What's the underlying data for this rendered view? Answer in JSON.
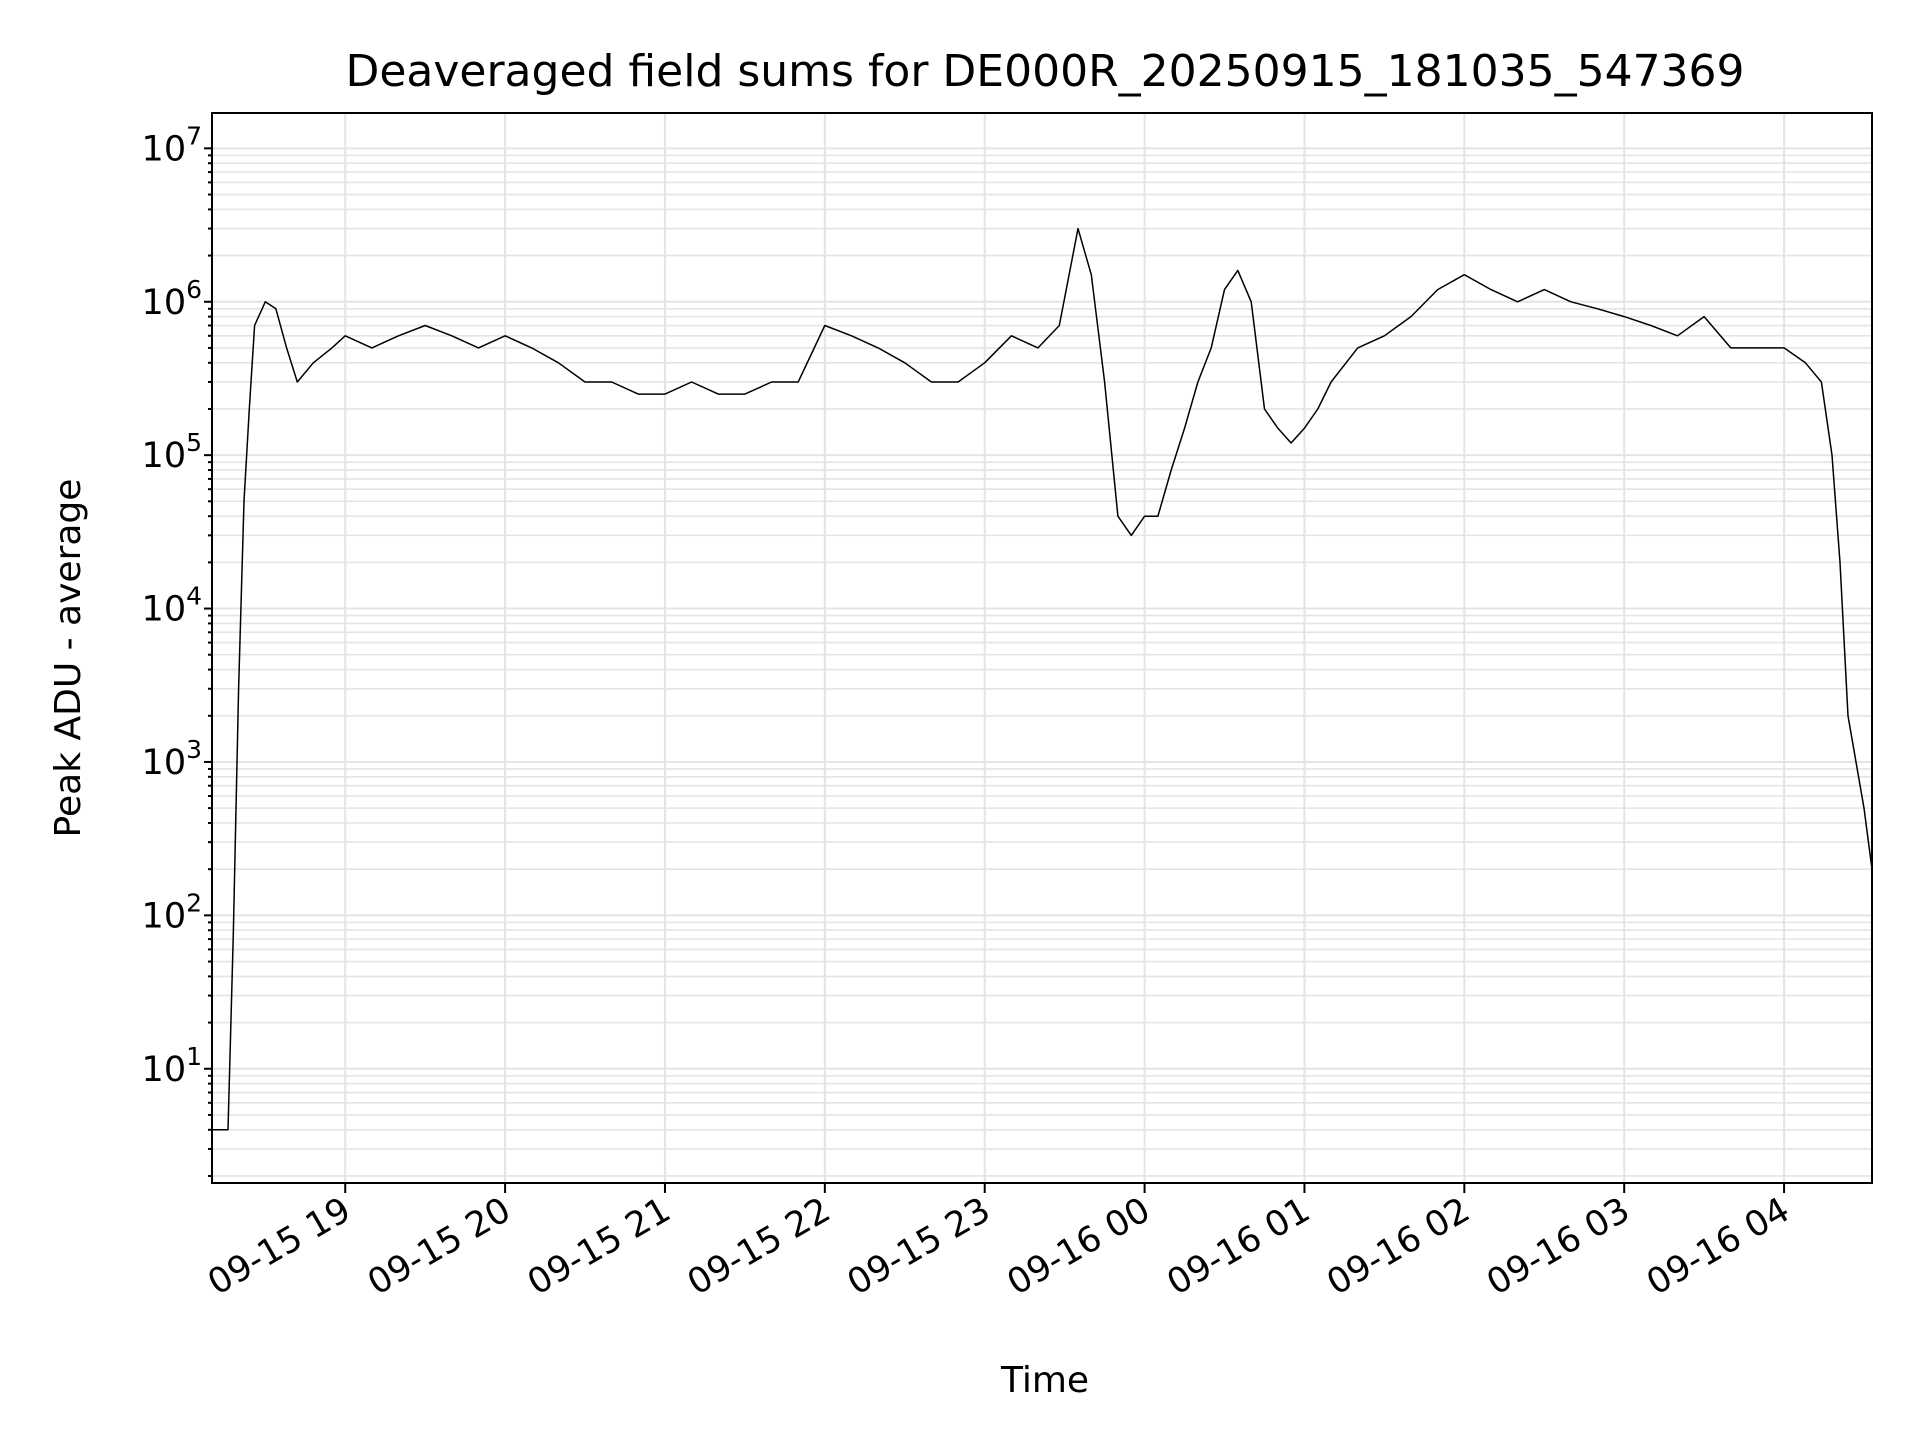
{
  "chart_data": {
    "type": "line",
    "title": "Deaveraged field sums for DE000R_20250915_181035_547369",
    "xlabel": "Time",
    "ylabel": "Peak ADU - average",
    "yscale": "log",
    "ylim": [
      1.8,
      17000000
    ],
    "xlim": [
      "2025-09-15 18:10",
      "2025-09-16 04:33"
    ],
    "grid": true,
    "x_ticks": [
      "09-15 19",
      "09-15 20",
      "09-15 21",
      "09-15 22",
      "09-15 23",
      "09-16 00",
      "09-16 01",
      "09-16 02",
      "09-16 03",
      "09-16 04"
    ],
    "y_ticks": [
      {
        "base": "10",
        "exp": "1"
      },
      {
        "base": "10",
        "exp": "2"
      },
      {
        "base": "10",
        "exp": "3"
      },
      {
        "base": "10",
        "exp": "4"
      },
      {
        "base": "10",
        "exp": "5"
      },
      {
        "base": "10",
        "exp": "6"
      },
      {
        "base": "10",
        "exp": "7"
      }
    ],
    "line_color": "#000000",
    "series": [
      {
        "x": [
          "2025-09-15 18:10",
          "2025-09-15 18:14",
          "2025-09-15 18:16",
          "2025-09-15 18:18",
          "2025-09-15 18:20",
          "2025-09-15 18:22",
          "2025-09-15 18:24",
          "2025-09-15 18:26",
          "2025-09-15 18:30",
          "2025-09-15 18:34",
          "2025-09-15 18:38",
          "2025-09-15 18:42",
          "2025-09-15 18:48",
          "2025-09-15 18:55",
          "2025-09-15 19:00",
          "2025-09-15 19:10",
          "2025-09-15 19:20",
          "2025-09-15 19:30",
          "2025-09-15 19:40",
          "2025-09-15 19:50",
          "2025-09-15 20:00",
          "2025-09-15 20:10",
          "2025-09-15 20:20",
          "2025-09-15 20:30",
          "2025-09-15 20:40",
          "2025-09-15 20:50",
          "2025-09-15 21:00",
          "2025-09-15 21:10",
          "2025-09-15 21:20",
          "2025-09-15 21:30",
          "2025-09-15 21:40",
          "2025-09-15 21:50",
          "2025-09-15 22:00",
          "2025-09-15 22:10",
          "2025-09-15 22:20",
          "2025-09-15 22:30",
          "2025-09-15 22:40",
          "2025-09-15 22:50",
          "2025-09-15 23:00",
          "2025-09-15 23:10",
          "2025-09-15 23:20",
          "2025-09-15 23:28",
          "2025-09-15 23:35",
          "2025-09-15 23:40",
          "2025-09-15 23:45",
          "2025-09-15 23:50",
          "2025-09-15 23:55",
          "2025-09-16 00:00",
          "2025-09-16 00:05",
          "2025-09-16 00:10",
          "2025-09-16 00:15",
          "2025-09-16 00:20",
          "2025-09-16 00:25",
          "2025-09-16 00:30",
          "2025-09-16 00:35",
          "2025-09-16 00:40",
          "2025-09-16 00:45",
          "2025-09-16 00:50",
          "2025-09-16 00:55",
          "2025-09-16 01:00",
          "2025-09-16 01:05",
          "2025-09-16 01:10",
          "2025-09-16 01:20",
          "2025-09-16 01:30",
          "2025-09-16 01:40",
          "2025-09-16 01:50",
          "2025-09-16 02:00",
          "2025-09-16 02:10",
          "2025-09-16 02:20",
          "2025-09-16 02:30",
          "2025-09-16 02:40",
          "2025-09-16 02:50",
          "2025-09-16 03:00",
          "2025-09-16 03:10",
          "2025-09-16 03:20",
          "2025-09-16 03:30",
          "2025-09-16 03:40",
          "2025-09-16 03:50",
          "2025-09-16 04:00",
          "2025-09-16 04:08",
          "2025-09-16 04:14",
          "2025-09-16 04:18",
          "2025-09-16 04:21",
          "2025-09-16 04:24",
          "2025-09-16 04:27",
          "2025-09-16 04:30",
          "2025-09-16 04:33"
        ],
        "y": [
          4,
          4,
          4,
          75,
          3000,
          50000,
          200000,
          700000,
          1000000,
          900000,
          500000,
          300000,
          400000,
          500000,
          600000,
          500000,
          600000,
          700000,
          600000,
          500000,
          600000,
          500000,
          400000,
          300000,
          300000,
          250000,
          250000,
          300000,
          250000,
          250000,
          300000,
          300000,
          700000,
          600000,
          500000,
          400000,
          300000,
          300000,
          400000,
          600000,
          500000,
          700000,
          3000000,
          1500000,
          300000,
          40000,
          30000,
          40000,
          40000,
          80000,
          150000,
          300000,
          500000,
          1200000,
          1600000,
          1000000,
          200000,
          150000,
          120000,
          150000,
          200000,
          300000,
          500000,
          600000,
          800000,
          1200000,
          1500000,
          1200000,
          1000000,
          1200000,
          1000000,
          900000,
          800000,
          700000,
          600000,
          800000,
          500000,
          500000,
          500000,
          400000,
          300000,
          100000,
          20000,
          2000,
          1000,
          500,
          200
        ]
      }
    ]
  }
}
